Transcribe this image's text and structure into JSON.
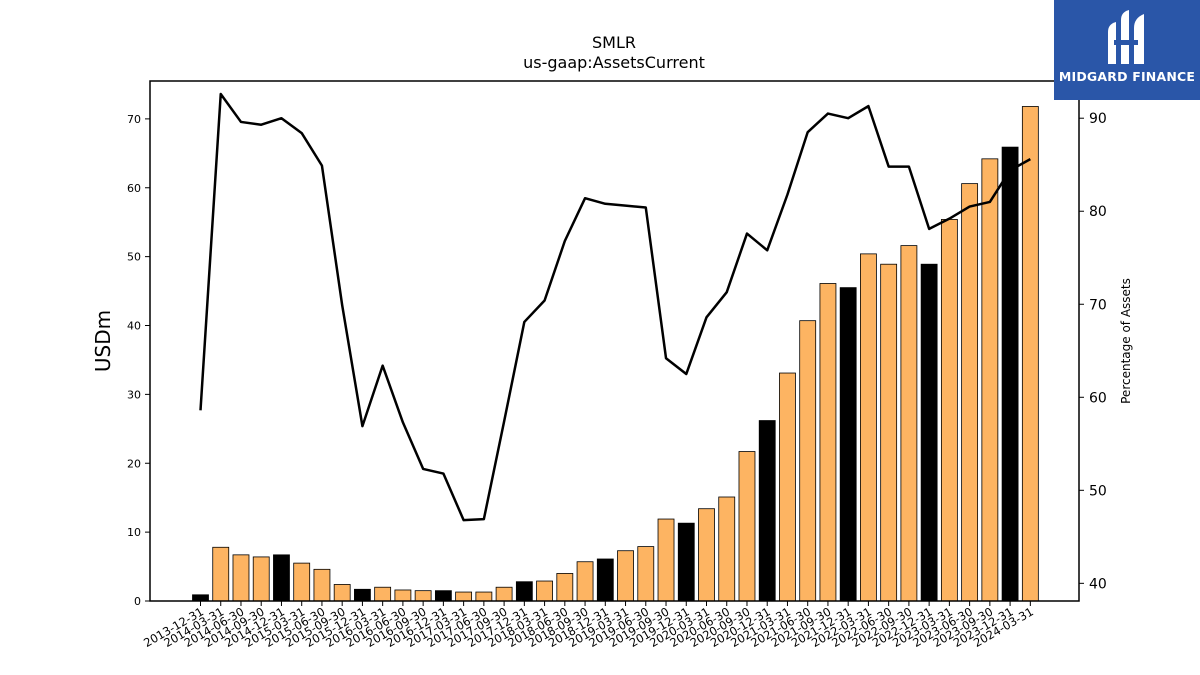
{
  "chart_data": {
    "type": "bar",
    "title": "SMLR",
    "subtitle": "us-gaap:AssetsCurrent",
    "ylabel": "USDm",
    "y2label": "Percentage of Assets",
    "ylim": [
      0,
      75.5
    ],
    "y2lim": [
      38.1,
      94.0
    ],
    "yticks": [
      0,
      10,
      20,
      30,
      40,
      50,
      60,
      70
    ],
    "y2ticks": [
      40,
      50,
      60,
      70,
      80,
      90
    ],
    "categories": [
      "2013-12-31",
      "2014-03-31",
      "2014-06-30",
      "2014-09-30",
      "2014-12-31",
      "2015-03-31",
      "2015-06-30",
      "2015-09-30",
      "2015-12-31",
      "2016-03-31",
      "2016-06-30",
      "2016-09-30",
      "2016-12-31",
      "2017-03-31",
      "2017-06-30",
      "2017-09-30",
      "2017-12-31",
      "2018-03-31",
      "2018-06-30",
      "2018-09-30",
      "2018-12-31",
      "2019-03-31",
      "2019-06-30",
      "2019-09-30",
      "2019-12-31",
      "2020-03-31",
      "2020-06-30",
      "2020-09-30",
      "2020-12-31",
      "2021-03-31",
      "2021-06-30",
      "2021-09-30",
      "2021-12-31",
      "2022-03-31",
      "2022-06-30",
      "2022-09-30",
      "2022-12-31",
      "2023-03-31",
      "2023-06-30",
      "2023-09-30",
      "2023-12-31",
      "2024-03-31"
    ],
    "series": [
      {
        "kind": "bar",
        "values": [
          0.9,
          7.8,
          6.7,
          6.4,
          6.7,
          5.5,
          4.6,
          2.4,
          1.7,
          2.0,
          1.6,
          1.5,
          1.5,
          1.3,
          1.3,
          2.0,
          2.8,
          2.9,
          4.0,
          5.7,
          6.1,
          7.3,
          7.9,
          11.9,
          11.3,
          13.4,
          15.1,
          21.7,
          26.2,
          33.1,
          40.7,
          46.1,
          45.5,
          50.4,
          48.9,
          51.6,
          48.9,
          55.4,
          60.6,
          64.2,
          65.9,
          71.8
        ],
        "colors": [
          "#000000",
          "#fdb462",
          "#fdb462",
          "#fdb462",
          "#000000",
          "#fdb462",
          "#fdb462",
          "#fdb462",
          "#000000",
          "#fdb462",
          "#fdb462",
          "#fdb462",
          "#000000",
          "#fdb462",
          "#fdb462",
          "#fdb462",
          "#000000",
          "#fdb462",
          "#fdb462",
          "#fdb462",
          "#000000",
          "#fdb462",
          "#fdb462",
          "#fdb462",
          "#000000",
          "#fdb462",
          "#fdb462",
          "#fdb462",
          "#000000",
          "#fdb462",
          "#fdb462",
          "#fdb462",
          "#000000",
          "#fdb462",
          "#fdb462",
          "#fdb462",
          "#000000",
          "#fdb462",
          "#fdb462",
          "#fdb462",
          "#000000",
          "#fdb462"
        ]
      },
      {
        "kind": "line",
        "axis": "right",
        "color": "#000000",
        "values": [
          58.6,
          92.6,
          89.6,
          89.3,
          90.0,
          88.4,
          84.9,
          69.9,
          56.9,
          63.4,
          57.3,
          52.3,
          51.8,
          46.8,
          46.9,
          57.4,
          68.1,
          70.4,
          76.8,
          81.4,
          80.8,
          80.6,
          80.4,
          64.2,
          62.5,
          68.6,
          71.3,
          77.6,
          75.8,
          81.8,
          88.5,
          90.5,
          90.0,
          91.3,
          84.8,
          84.8,
          78.1,
          79.2,
          80.5,
          81.0,
          84.4,
          85.6
        ]
      }
    ],
    "grid": false,
    "bar_edge_color": "#000000",
    "orange_color": "#fdb462",
    "accent_black": "#000000"
  },
  "logo": {
    "text": "MIDGARD FINANCE",
    "background": "#2a56a8"
  }
}
